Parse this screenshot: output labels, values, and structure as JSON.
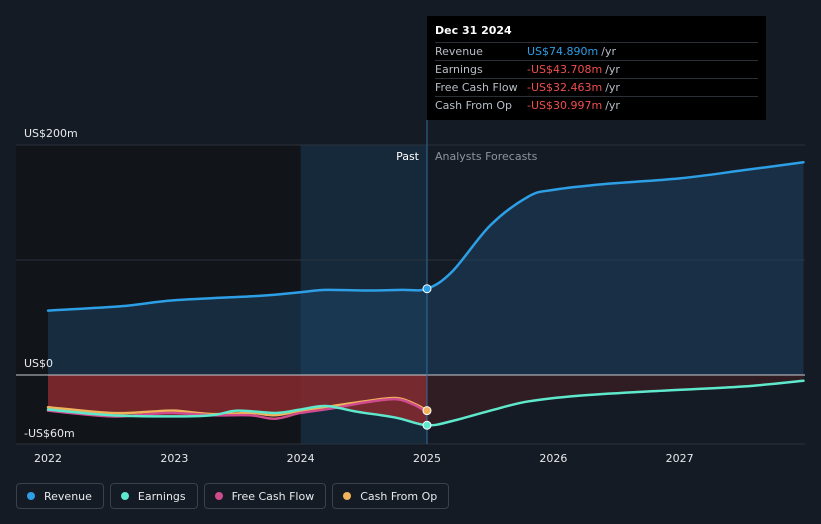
{
  "tooltip": {
    "date": "Dec 31 2024",
    "rows": [
      {
        "name": "Revenue",
        "value": "US$74.890m",
        "unit": "/yr",
        "color": "#2d9fe6"
      },
      {
        "name": "Earnings",
        "value": "-US$43.708m",
        "unit": "/yr",
        "color": "#f04e4e"
      },
      {
        "name": "Free Cash Flow",
        "value": "-US$32.463m",
        "unit": "/yr",
        "color": "#f04e4e"
      },
      {
        "name": "Cash From Op",
        "value": "-US$30.997m",
        "unit": "/yr",
        "color": "#f04e4e"
      }
    ]
  },
  "labels": {
    "past": "Past",
    "forecast": "Analysts Forecasts"
  },
  "legend": [
    {
      "label": "Revenue",
      "color": "#2d9fe6"
    },
    {
      "label": "Earnings",
      "color": "#5ee8cc"
    },
    {
      "label": "Free Cash Flow",
      "color": "#d04b8e"
    },
    {
      "label": "Cash From Op",
      "color": "#f0b25a"
    }
  ],
  "chart_data": {
    "type": "line",
    "title": "",
    "unit": "US$m",
    "ylim": [
      -60,
      200
    ],
    "y_tick_labels": [
      {
        "value": 200,
        "label": "US$200m"
      },
      {
        "value": 0,
        "label": "US$0"
      },
      {
        "value": -60,
        "label": "-US$60m"
      }
    ],
    "xlim": [
      2022.0,
      2027.98
    ],
    "x_ticks": [
      {
        "value": 2022,
        "label": "2022"
      },
      {
        "value": 2023,
        "label": "2023"
      },
      {
        "value": 2024,
        "label": "2024"
      },
      {
        "value": 2025,
        "label": "2025"
      },
      {
        "value": 2026,
        "label": "2026"
      },
      {
        "value": 2027,
        "label": "2027"
      }
    ],
    "past_end": 2025.0,
    "highlight_start": 2024.0,
    "series": [
      {
        "name": "Revenue",
        "color": "#2d9fe6",
        "points": [
          [
            2022.0,
            56
          ],
          [
            2022.6,
            60
          ],
          [
            2023.0,
            65
          ],
          [
            2023.7,
            69
          ],
          [
            2024.0,
            72
          ],
          [
            2024.2,
            74
          ],
          [
            2024.5,
            73.5
          ],
          [
            2024.8,
            74
          ],
          [
            2025.0,
            75
          ],
          [
            2025.2,
            90
          ],
          [
            2025.5,
            130
          ],
          [
            2025.8,
            155
          ],
          [
            2026.0,
            161
          ],
          [
            2026.4,
            166
          ],
          [
            2027.0,
            171
          ],
          [
            2027.5,
            178
          ],
          [
            2027.98,
            185
          ]
        ],
        "marker_at": 2025.0
      },
      {
        "name": "Earnings",
        "color": "#5ee8cc",
        "points": [
          [
            2022.0,
            -30
          ],
          [
            2022.5,
            -35
          ],
          [
            2023.0,
            -36
          ],
          [
            2023.3,
            -35
          ],
          [
            2023.5,
            -31
          ],
          [
            2023.8,
            -33
          ],
          [
            2024.0,
            -30
          ],
          [
            2024.2,
            -27
          ],
          [
            2024.45,
            -32
          ],
          [
            2024.75,
            -37
          ],
          [
            2025.0,
            -43.7
          ],
          [
            2025.2,
            -40
          ],
          [
            2025.5,
            -31
          ],
          [
            2025.8,
            -23
          ],
          [
            2026.2,
            -18
          ],
          [
            2026.8,
            -14
          ],
          [
            2027.5,
            -10
          ],
          [
            2027.98,
            -5
          ]
        ],
        "marker_at": 2025.0
      },
      {
        "name": "Free Cash Flow",
        "color": "#d04b8e",
        "points": [
          [
            2022.0,
            -31
          ],
          [
            2022.5,
            -36
          ],
          [
            2022.8,
            -34
          ],
          [
            2023.0,
            -33
          ],
          [
            2023.3,
            -35
          ],
          [
            2023.6,
            -35
          ],
          [
            2023.8,
            -38
          ],
          [
            2024.0,
            -33
          ],
          [
            2024.25,
            -29
          ],
          [
            2024.5,
            -24
          ],
          [
            2024.75,
            -21
          ],
          [
            2024.9,
            -26
          ],
          [
            2025.0,
            -32.5
          ]
        ]
      },
      {
        "name": "Cash From Op",
        "color": "#f0b25a",
        "points": [
          [
            2022.0,
            -28
          ],
          [
            2022.5,
            -33
          ],
          [
            2022.8,
            -32
          ],
          [
            2023.0,
            -31
          ],
          [
            2023.3,
            -34
          ],
          [
            2023.6,
            -33
          ],
          [
            2023.8,
            -35
          ],
          [
            2024.0,
            -31
          ],
          [
            2024.25,
            -27
          ],
          [
            2024.5,
            -23
          ],
          [
            2024.75,
            -20
          ],
          [
            2024.9,
            -25
          ],
          [
            2025.0,
            -31
          ]
        ],
        "marker_at": 2025.0
      }
    ]
  }
}
